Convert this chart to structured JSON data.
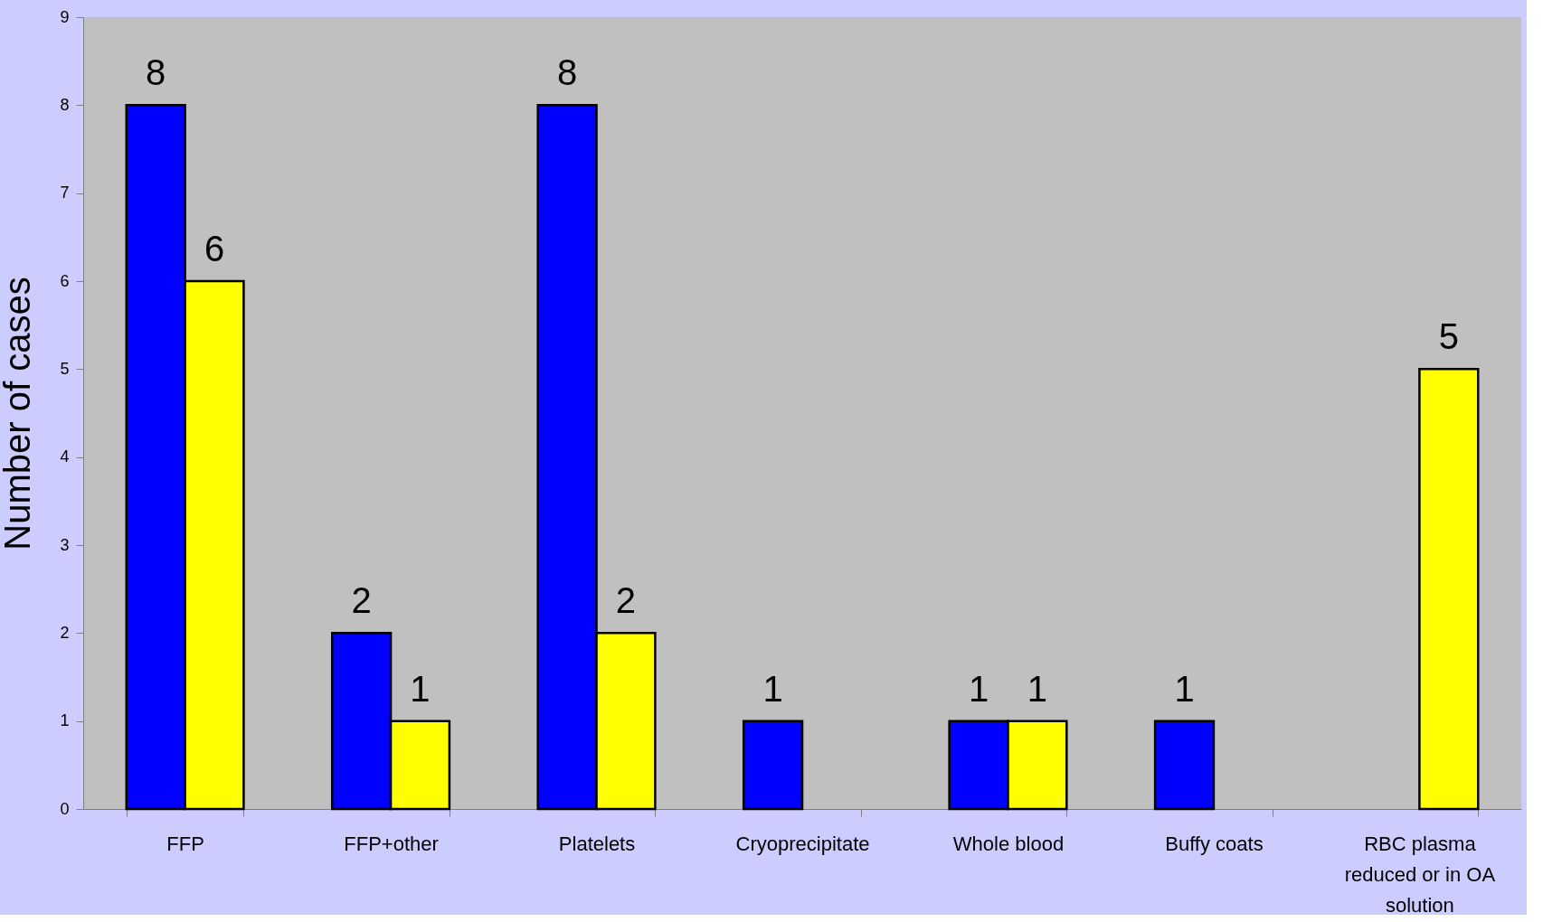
{
  "chart_data": {
    "type": "bar",
    "ylabel": "Number of cases",
    "categories": [
      "FFP",
      "FFP+other",
      "Platelets",
      "Cryoprecipitate",
      "Whole blood",
      "Buffy coats",
      "RBC plasma reduced or in OA solution"
    ],
    "series": [
      {
        "color": "#0000ff",
        "values": [
          8,
          2,
          8,
          1,
          1,
          1,
          null
        ]
      },
      {
        "color": "#ffff00",
        "values": [
          6,
          1,
          2,
          null,
          1,
          null,
          5
        ]
      }
    ],
    "ylim": [
      0,
      9
    ],
    "yticks": [
      0,
      1,
      2,
      3,
      4,
      5,
      6,
      7,
      8,
      9
    ],
    "grid": false,
    "data_labels": true
  }
}
